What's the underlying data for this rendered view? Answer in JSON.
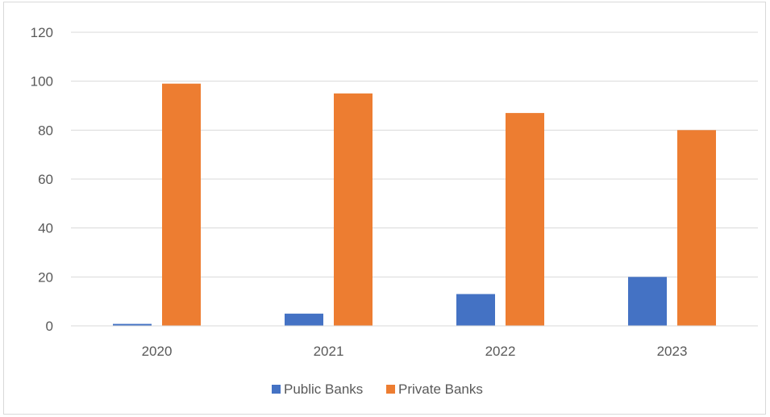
{
  "chart_data": {
    "type": "bar",
    "categories": [
      "2020",
      "2021",
      "2022",
      "2023"
    ],
    "series": [
      {
        "name": "Public Banks",
        "color": "#4472c4",
        "values": [
          0.8,
          5,
          13,
          20
        ]
      },
      {
        "name": "Private Banks",
        "color": "#ed7d31",
        "values": [
          99,
          95,
          87,
          80
        ]
      }
    ],
    "ylim": [
      0,
      120
    ],
    "yticks": [
      "0",
      "20",
      "40",
      "60",
      "80",
      "100",
      "120"
    ],
    "grid": true,
    "legend_position": "bottom",
    "title": "",
    "xlabel": "",
    "ylabel": ""
  }
}
